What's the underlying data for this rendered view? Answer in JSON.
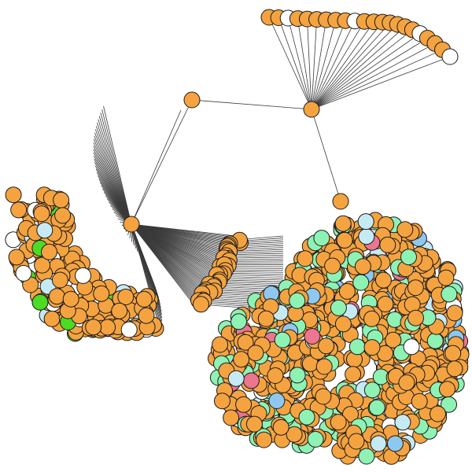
{
  "graph": {
    "type": "network",
    "node_colors": {
      "orange": "#f4a340",
      "white": "#ffffff",
      "lightblue": "#c6eaf3",
      "green": "#4cdc22",
      "mint": "#8ef2b4",
      "skyblue": "#8ec8ee",
      "pink": "#ec7590"
    },
    "edge_color": "#3a3a3a",
    "node_outline": "#1a1a1a",
    "clusters": [
      {
        "name": "top-right-fan",
        "hub_color": "orange",
        "shape": "arc",
        "node_count": 22,
        "color_counts": {
          "orange": 18,
          "white": 4
        }
      },
      {
        "name": "left-crescent",
        "hub_color": "orange",
        "shape": "crescent",
        "node_count": 230,
        "color_counts": {
          "orange": 192,
          "white": 20,
          "green": 9,
          "lightblue": 9
        }
      },
      {
        "name": "middle-column",
        "hub_color": "orange",
        "shape": "column",
        "node_count": 34,
        "color_counts": {
          "orange": 34
        }
      },
      {
        "name": "large-blob",
        "hub_color": "orange",
        "shape": "blob",
        "node_count": 780,
        "color_counts": {
          "orange": 560,
          "mint": 140,
          "lightblue": 35,
          "skyblue": 20,
          "pink": 18,
          "white": 7
        }
      }
    ],
    "hubs": [
      {
        "name": "hub-top",
        "color": "orange"
      },
      {
        "name": "hub-left",
        "color": "orange"
      },
      {
        "name": "hub-blob-top",
        "color": "orange"
      },
      {
        "name": "hub-crescent-tip",
        "color": "orange"
      }
    ]
  }
}
